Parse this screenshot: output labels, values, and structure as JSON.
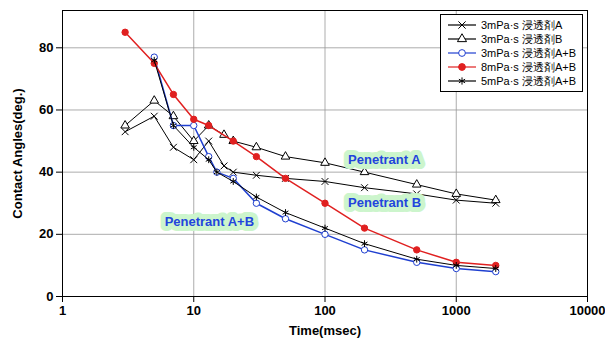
{
  "chart_data": {
    "type": "line",
    "x_label": "Time(msec)",
    "y_label": "Contact Angles(deg.)",
    "log": "x",
    "grid": true,
    "legend": "top-right",
    "xlim": [
      1,
      10000
    ],
    "xticks": [
      1,
      10,
      100,
      1000,
      10000
    ],
    "ylim": [
      0,
      92
    ],
    "yticks": [
      0,
      20,
      40,
      60,
      80
    ],
    "series": [
      {
        "name": "3mPa·s 浸透剤A",
        "color": "#000000",
        "marker": "times",
        "line_style": "solid",
        "x": [
          3,
          5,
          7,
          10,
          13,
          17,
          20,
          30,
          50,
          100,
          200,
          500,
          1000,
          2000
        ],
        "values": [
          53,
          58,
          48,
          44,
          50,
          42,
          40,
          39,
          38,
          37,
          35,
          33,
          31,
          30
        ]
      },
      {
        "name": "3mPa·s 浸透剤B",
        "color": "#000000",
        "marker": "triangle-open",
        "line_style": "solid",
        "x": [
          3,
          5,
          7,
          10,
          13,
          17,
          20,
          30,
          50,
          100,
          200,
          500,
          1000,
          2000
        ],
        "values": [
          55,
          63,
          58,
          50,
          55,
          52,
          50,
          48,
          45,
          43,
          40,
          36,
          33,
          31
        ]
      },
      {
        "name": "3mPa·s 浸透剤A+B",
        "color": "#1f3fd0",
        "marker": "circle-open",
        "line_style": "solid",
        "x": [
          5,
          7,
          10,
          13,
          15,
          20,
          30,
          50,
          100,
          200,
          500,
          1000,
          2000
        ],
        "values": [
          77,
          55,
          55,
          45,
          40,
          38,
          30,
          25,
          20,
          15,
          11,
          9,
          8
        ]
      },
      {
        "name": "8mPa·s 浸透剤A+B",
        "color": "#e02020",
        "marker": "circle",
        "line_style": "solid",
        "x": [
          3,
          5,
          7,
          10,
          13,
          20,
          30,
          50,
          100,
          200,
          500,
          1000,
          2000
        ],
        "values": [
          85,
          75,
          65,
          57,
          55,
          50,
          45,
          38,
          30,
          22,
          15,
          11,
          10
        ]
      },
      {
        "name": "5mPa·s 浸透剤A+B",
        "color": "#000000",
        "marker": "asterisk",
        "line_style": "solid",
        "x": [
          5,
          7,
          10,
          13,
          15,
          20,
          30,
          50,
          100,
          200,
          500,
          1000,
          2000
        ],
        "values": [
          76,
          55,
          48,
          44,
          40,
          37,
          32,
          27,
          22,
          17,
          12,
          10,
          9
        ]
      }
    ],
    "annotations": [
      {
        "text": "Penetrant A",
        "x": 150,
        "y": 44
      },
      {
        "text": "Penetrant B",
        "x": 150,
        "y": 30
      },
      {
        "text": "Penetrant A+B",
        "x": 6,
        "y": 24
      }
    ]
  }
}
